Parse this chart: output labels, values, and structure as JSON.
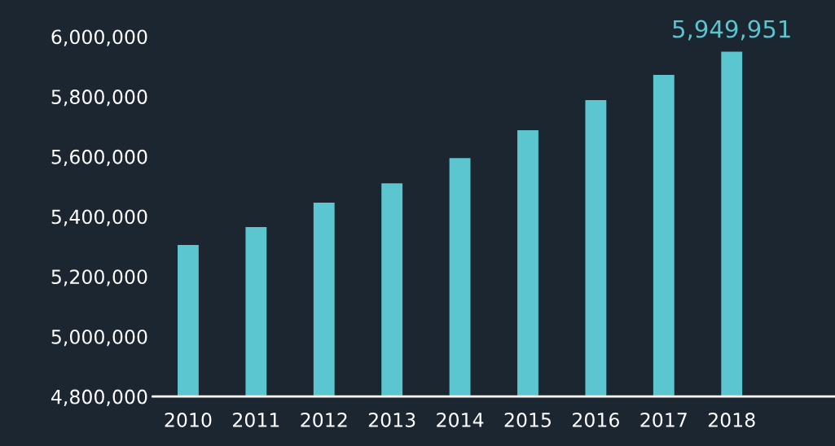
{
  "chart_data": {
    "type": "bar",
    "categories": [
      "2010",
      "2011",
      "2012",
      "2013",
      "2014",
      "2015",
      "2016",
      "2017",
      "2018"
    ],
    "values": [
      5305000,
      5365000,
      5446000,
      5511000,
      5595000,
      5688000,
      5788000,
      5872000,
      5949951
    ],
    "value_labels": [
      null,
      null,
      null,
      null,
      null,
      null,
      null,
      null,
      "5,949,951"
    ],
    "color": "#5bc5d0",
    "ylim": [
      4800000,
      6000000
    ],
    "yticks": [
      {
        "value": 4800000,
        "label": "4,800,000"
      },
      {
        "value": 5000000,
        "label": "5,000,000"
      },
      {
        "value": 5200000,
        "label": "5,200,000"
      },
      {
        "value": 5400000,
        "label": "5,400,000"
      },
      {
        "value": 5600000,
        "label": "5,600,000"
      },
      {
        "value": 5800000,
        "label": "5,800,000"
      },
      {
        "value": 6000000,
        "label": "6,000,000"
      }
    ],
    "grid": false
  }
}
